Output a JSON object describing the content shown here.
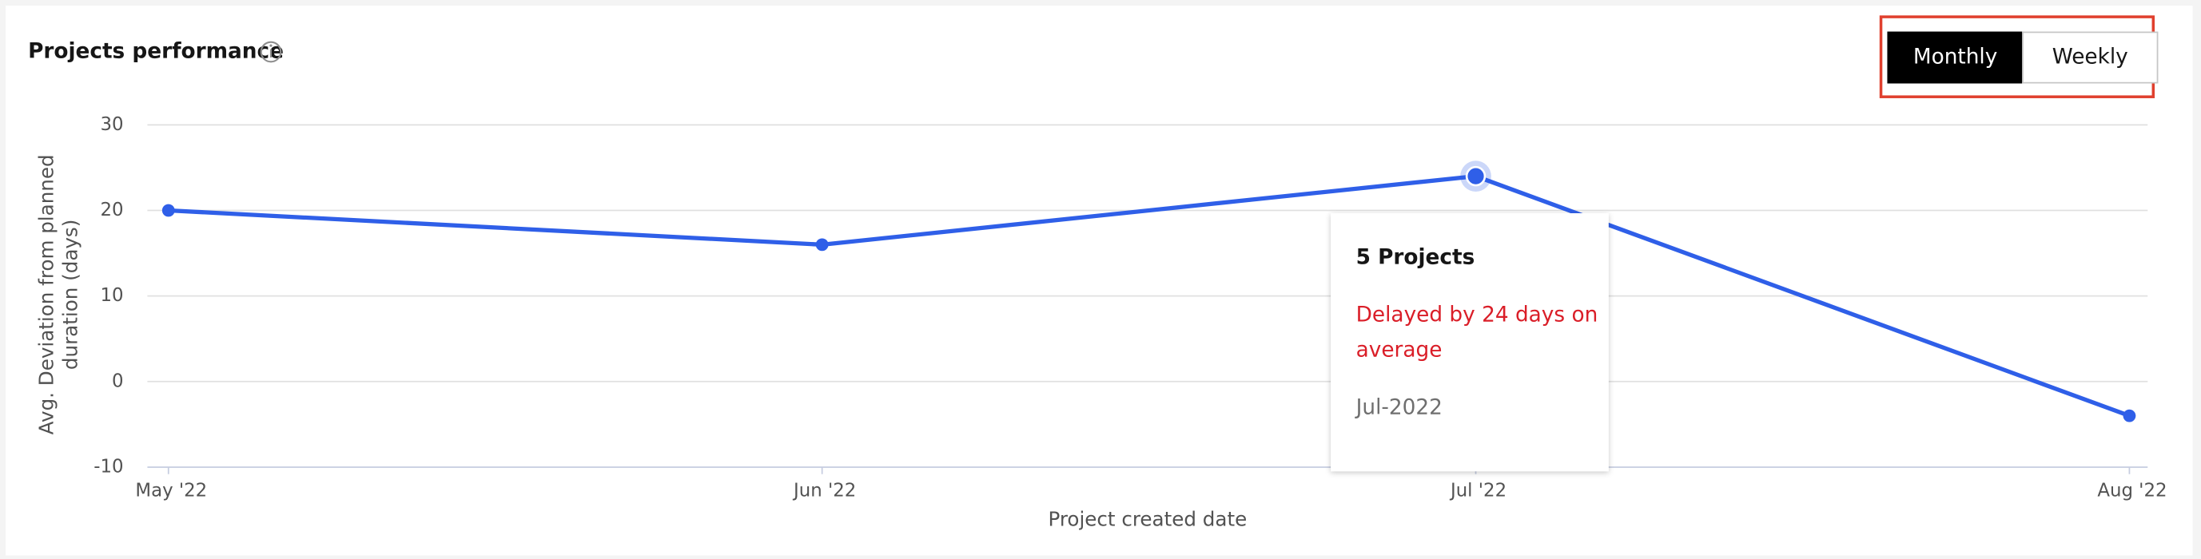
{
  "header": {
    "title": "Projects performance"
  },
  "toggle": {
    "options": [
      "Monthly",
      "Weekly"
    ],
    "active": 0
  },
  "chart_data": {
    "type": "line",
    "y_label": [
      "Avg. Deviation from planned",
      "duration (days)"
    ],
    "x_label": "Project created date",
    "categories": [
      "May '22",
      "Jun '22",
      "Jul '22",
      "Aug '22"
    ],
    "values": [
      20,
      16,
      24,
      -4
    ],
    "color": "#2f5fe8",
    "ylim": [
      -10,
      30
    ],
    "yticks": [
      -10,
      0,
      10,
      20,
      30
    ],
    "grid": true,
    "highlight": 2
  },
  "tooltip": {
    "title": "5 Projects",
    "message": [
      "Delayed by 24 days on",
      "average"
    ],
    "date": "Jul-2022"
  }
}
